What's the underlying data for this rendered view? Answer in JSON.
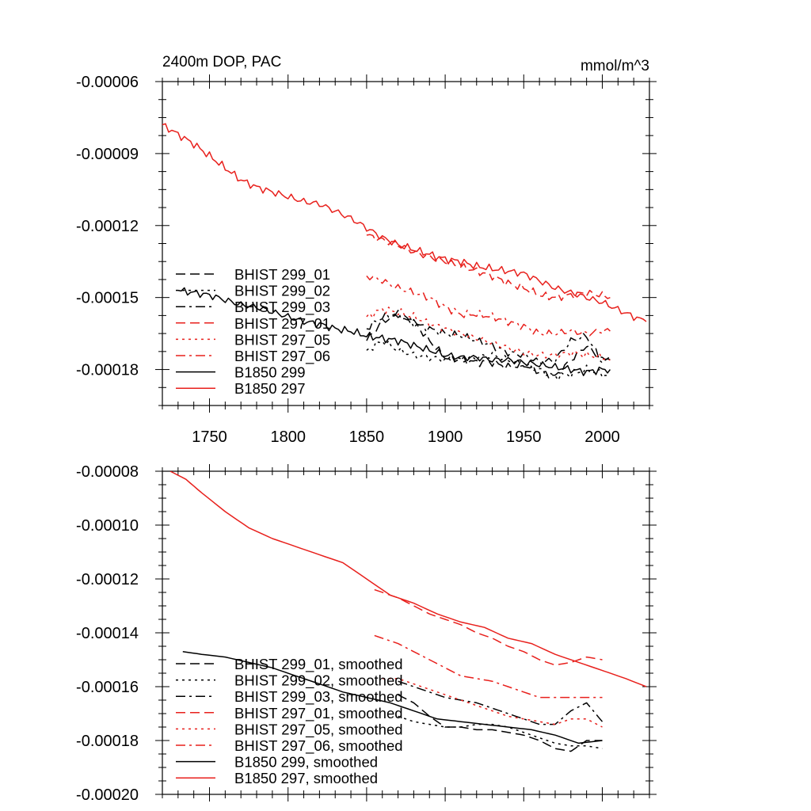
{
  "chart_data": [
    {
      "type": "line",
      "title": "2400m DOP, PAC",
      "units": "mmol/m^3",
      "xlim": [
        1720,
        2030
      ],
      "ylim": [
        -0.000195,
        -6e-05
      ],
      "x_ticks": [
        1750,
        1800,
        1850,
        1900,
        1950,
        2000
      ],
      "y_ticks": [
        -6e-05,
        -9e-05,
        -0.00012,
        -0.00015,
        -0.00018
      ],
      "y_tick_labels": [
        "-0.00006",
        "-0.00009",
        "-0.00012",
        "-0.00015",
        "-0.00018"
      ],
      "legend_position": "bottom-left",
      "series": [
        {
          "name": "BHIST 299_01",
          "color": "#000000",
          "dash": "dash",
          "noisy": true,
          "x": [
            1850,
            1860,
            1870,
            1880,
            1890,
            1900,
            1910,
            1920,
            1930,
            1940,
            1950,
            1960,
            1970,
            1980,
            1990,
            2000,
            2005
          ],
          "y": [
            -0.000168,
            -0.00016,
            -0.000157,
            -0.00016,
            -0.000168,
            -0.000175,
            -0.000176,
            -0.000177,
            -0.000177,
            -0.000179,
            -0.000178,
            -0.000181,
            -0.000183,
            -0.000176,
            -0.00017,
            -0.000176,
            -0.000174
          ]
        },
        {
          "name": "BHIST 299_02",
          "color": "#000000",
          "dash": "dot",
          "noisy": true,
          "x": [
            1850,
            1860,
            1870,
            1880,
            1890,
            1900,
            1910,
            1920,
            1930,
            1940,
            1950,
            1960,
            1970,
            1980,
            1990,
            2000,
            2005
          ],
          "y": [
            -0.000172,
            -0.000168,
            -0.000172,
            -0.000174,
            -0.000175,
            -0.000176,
            -0.000176,
            -0.000175,
            -0.000174,
            -0.000176,
            -0.000178,
            -0.00018,
            -0.000183,
            -0.000182,
            -0.00018,
            -0.000182,
            -0.000183
          ]
        },
        {
          "name": "BHIST 299_03",
          "color": "#000000",
          "dash": "dashdot",
          "noisy": true,
          "x": [
            1850,
            1860,
            1870,
            1880,
            1890,
            1900,
            1910,
            1920,
            1930,
            1940,
            1950,
            1960,
            1970,
            1980,
            1990,
            2000,
            2005
          ],
          "y": [
            -0.000163,
            -0.000158,
            -0.000157,
            -0.000161,
            -0.000163,
            -0.000165,
            -0.000166,
            -0.000168,
            -0.00017,
            -0.000173,
            -0.000174,
            -0.000177,
            -0.000176,
            -0.000168,
            -0.000166,
            -0.000177,
            -0.000176
          ]
        },
        {
          "name": "BHIST 297_01",
          "color": "#e8201c",
          "dash": "dash",
          "noisy": true,
          "x": [
            1850,
            1860,
            1870,
            1880,
            1890,
            1900,
            1910,
            1920,
            1930,
            1940,
            1950,
            1960,
            1970,
            1980,
            1990,
            2000,
            2005
          ],
          "y": [
            -0.000124,
            -0.000126,
            -0.000128,
            -0.000131,
            -0.000133,
            -0.000135,
            -0.000137,
            -0.000139,
            -0.000141,
            -0.000144,
            -0.000146,
            -0.000149,
            -0.00015,
            -0.000149,
            -0.000148,
            -0.000149,
            -0.00015
          ]
        },
        {
          "name": "BHIST 297_05",
          "color": "#e8201c",
          "dash": "dot",
          "noisy": true,
          "x": [
            1850,
            1860,
            1870,
            1880,
            1890,
            1900,
            1910,
            1920,
            1930,
            1940,
            1950,
            1960,
            1970,
            1980,
            1990,
            2000,
            2005
          ],
          "y": [
            -0.000158,
            -0.000155,
            -0.000156,
            -0.000158,
            -0.000161,
            -0.000163,
            -0.000165,
            -0.000167,
            -0.000169,
            -0.000171,
            -0.000173,
            -0.000174,
            -0.000174,
            -0.000173,
            -0.000174,
            -0.000175,
            -0.000176
          ]
        },
        {
          "name": "BHIST 297_06",
          "color": "#e8201c",
          "dash": "dashdot",
          "noisy": true,
          "x": [
            1850,
            1860,
            1870,
            1880,
            1890,
            1900,
            1910,
            1920,
            1930,
            1940,
            1950,
            1960,
            1970,
            1980,
            1990,
            2000,
            2005
          ],
          "y": [
            -0.000141,
            -0.000143,
            -0.000146,
            -0.000148,
            -0.00015,
            -0.000154,
            -0.000157,
            -0.000157,
            -0.000158,
            -0.00016,
            -0.000162,
            -0.000165,
            -0.000165,
            -0.000164,
            -0.000165,
            -0.000164,
            -0.000164
          ]
        },
        {
          "name": "B1850 299",
          "color": "#000000",
          "dash": "solid",
          "noisy": true,
          "x": [
            1730,
            1740,
            1750,
            1760,
            1770,
            1780,
            1790,
            1800,
            1810,
            1820,
            1830,
            1840,
            1850,
            1860,
            1870,
            1880,
            1890,
            1900,
            1910,
            1920,
            1930,
            1940,
            1950,
            1960,
            1970,
            1980,
            1990,
            2000,
            2005
          ],
          "y": [
            -0.000147,
            -0.000148,
            -0.000149,
            -0.000151,
            -0.000153,
            -0.000154,
            -0.000156,
            -0.000158,
            -0.00016,
            -0.000161,
            -0.000163,
            -0.000164,
            -0.000166,
            -0.000167,
            -0.000168,
            -0.00017,
            -0.000172,
            -0.000174,
            -0.000175,
            -0.000175,
            -0.000176,
            -0.000176,
            -0.000177,
            -0.000178,
            -0.000179,
            -0.00018,
            -0.000181,
            -0.00018,
            -0.00018
          ]
        },
        {
          "name": "B1850 297",
          "color": "#e8201c",
          "dash": "solid",
          "noisy": true,
          "x": [
            1720,
            1730,
            1740,
            1750,
            1760,
            1770,
            1780,
            1790,
            1800,
            1810,
            1820,
            1830,
            1840,
            1850,
            1860,
            1870,
            1880,
            1890,
            1900,
            1910,
            1920,
            1930,
            1940,
            1950,
            1960,
            1970,
            1980,
            1990,
            2000,
            2010,
            2020,
            2028
          ],
          "y": [
            -7.8e-05,
            -8.2e-05,
            -8.6e-05,
            -9.1e-05,
            -9.6e-05,
            -0.000101,
            -0.000104,
            -0.000106,
            -0.000108,
            -0.00011,
            -0.000111,
            -0.000114,
            -0.000117,
            -0.000121,
            -0.000125,
            -0.000128,
            -0.00013,
            -0.000132,
            -0.000134,
            -0.000135,
            -0.000137,
            -0.000138,
            -0.000139,
            -0.00014,
            -0.000143,
            -0.000146,
            -0.000148,
            -0.00015,
            -0.000152,
            -0.000155,
            -0.000158,
            -0.00016
          ]
        }
      ]
    },
    {
      "type": "line",
      "title": "",
      "xlim": [
        1720,
        2030
      ],
      "ylim": [
        -0.0002,
        -8e-05
      ],
      "x_ticks": [
        1750,
        1800,
        1850,
        1900,
        1950,
        2000
      ],
      "y_ticks": [
        -8e-05,
        -0.0001,
        -0.00012,
        -0.00014,
        -0.00016,
        -0.00018,
        -0.0002
      ],
      "y_tick_labels": [
        "-0.00008",
        "-0.00010",
        "-0.00012",
        "-0.00014",
        "-0.00016",
        "-0.00018",
        "-0.00020"
      ],
      "legend_position": "bottom-left",
      "series": [
        {
          "name": "BHIST 299_01, smoothed",
          "color": "#000000",
          "dash": "dash",
          "noisy": false,
          "x": [
            1870,
            1880,
            1890,
            1900,
            1910,
            1920,
            1930,
            1940,
            1950,
            1960,
            1970,
            1980,
            1990,
            2000
          ],
          "y": [
            -0.000163,
            -0.000166,
            -0.000171,
            -0.000175,
            -0.000175,
            -0.000176,
            -0.000176,
            -0.000177,
            -0.000178,
            -0.00018,
            -0.000183,
            -0.000184,
            -0.00018,
            -0.00018
          ]
        },
        {
          "name": "BHIST 299_02, smoothed",
          "color": "#000000",
          "dash": "dot",
          "noisy": false,
          "x": [
            1870,
            1880,
            1890,
            1900,
            1910,
            1920,
            1930,
            1940,
            1950,
            1960,
            1970,
            1980,
            1990,
            2000
          ],
          "y": [
            -0.000171,
            -0.000173,
            -0.000174,
            -0.000175,
            -0.000175,
            -0.000174,
            -0.000174,
            -0.000175,
            -0.000177,
            -0.000179,
            -0.000181,
            -0.000182,
            -0.000182,
            -0.000183
          ]
        },
        {
          "name": "BHIST 299_03, smoothed",
          "color": "#000000",
          "dash": "dashdot",
          "noisy": false,
          "x": [
            1870,
            1880,
            1890,
            1900,
            1910,
            1920,
            1930,
            1940,
            1950,
            1960,
            1970,
            1980,
            1990,
            2000
          ],
          "y": [
            -0.000158,
            -0.00016,
            -0.000162,
            -0.000164,
            -0.000165,
            -0.000166,
            -0.000168,
            -0.00017,
            -0.000172,
            -0.000174,
            -0.000174,
            -0.000169,
            -0.000166,
            -0.000173
          ]
        },
        {
          "name": "BHIST 297_01, smoothed",
          "color": "#e8201c",
          "dash": "dash",
          "noisy": false,
          "x": [
            1855,
            1870,
            1880,
            1890,
            1900,
            1910,
            1920,
            1930,
            1940,
            1950,
            1960,
            1970,
            1980,
            1990,
            2000
          ],
          "y": [
            -0.000124,
            -0.000127,
            -0.00013,
            -0.000133,
            -0.000135,
            -0.000137,
            -0.00014,
            -0.000142,
            -0.000145,
            -0.000147,
            -0.00015,
            -0.000152,
            -0.000151,
            -0.000149,
            -0.00015
          ]
        },
        {
          "name": "BHIST 297_05, smoothed",
          "color": "#e8201c",
          "dash": "dot",
          "noisy": false,
          "x": [
            1860,
            1870,
            1880,
            1890,
            1900,
            1910,
            1920,
            1930,
            1940,
            1950,
            1960,
            1970,
            1980,
            1990,
            2000
          ],
          "y": [
            -0.000157,
            -0.000157,
            -0.000159,
            -0.000161,
            -0.000163,
            -0.000165,
            -0.000167,
            -0.000169,
            -0.000171,
            -0.000172,
            -0.000173,
            -0.000174,
            -0.000172,
            -0.000172,
            -0.000175
          ]
        },
        {
          "name": "BHIST 297_06, smoothed",
          "color": "#e8201c",
          "dash": "dashdot",
          "noisy": false,
          "x": [
            1855,
            1870,
            1880,
            1890,
            1900,
            1910,
            1920,
            1930,
            1940,
            1950,
            1960,
            1970,
            1980,
            1990,
            2000
          ],
          "y": [
            -0.000141,
            -0.000144,
            -0.000147,
            -0.00015,
            -0.000153,
            -0.000156,
            -0.000157,
            -0.000158,
            -0.00016,
            -0.000162,
            -0.000164,
            -0.000164,
            -0.000164,
            -0.000164,
            -0.000164
          ]
        },
        {
          "name": "B1850 299, smoothed",
          "color": "#000000",
          "dash": "solid",
          "noisy": false,
          "x": [
            1733,
            1745,
            1760,
            1775,
            1790,
            1805,
            1820,
            1835,
            1850,
            1865,
            1880,
            1895,
            1910,
            1925,
            1940,
            1955,
            1970,
            1985,
            2000
          ],
          "y": [
            -0.000147,
            -0.000148,
            -0.000149,
            -0.000151,
            -0.000153,
            -0.000156,
            -0.000159,
            -0.000162,
            -0.000164,
            -0.000166,
            -0.000169,
            -0.000172,
            -0.000173,
            -0.000174,
            -0.000175,
            -0.000176,
            -0.000178,
            -0.000181,
            -0.00018
          ]
        },
        {
          "name": "B1850 297, smoothed",
          "color": "#e8201c",
          "dash": "solid",
          "noisy": false,
          "x": [
            1725,
            1735,
            1745,
            1760,
            1775,
            1790,
            1805,
            1820,
            1835,
            1850,
            1865,
            1880,
            1895,
            1910,
            1925,
            1940,
            1955,
            1970,
            1985,
            2000,
            2015,
            2028
          ],
          "y": [
            -8e-05,
            -8.3e-05,
            -8.8e-05,
            -9.5e-05,
            -0.000101,
            -0.000105,
            -0.000108,
            -0.000111,
            -0.000114,
            -0.00012,
            -0.000126,
            -0.000129,
            -0.000133,
            -0.000136,
            -0.000138,
            -0.000142,
            -0.000144,
            -0.000148,
            -0.000151,
            -0.000154,
            -0.000157,
            -0.00016
          ]
        }
      ]
    }
  ]
}
